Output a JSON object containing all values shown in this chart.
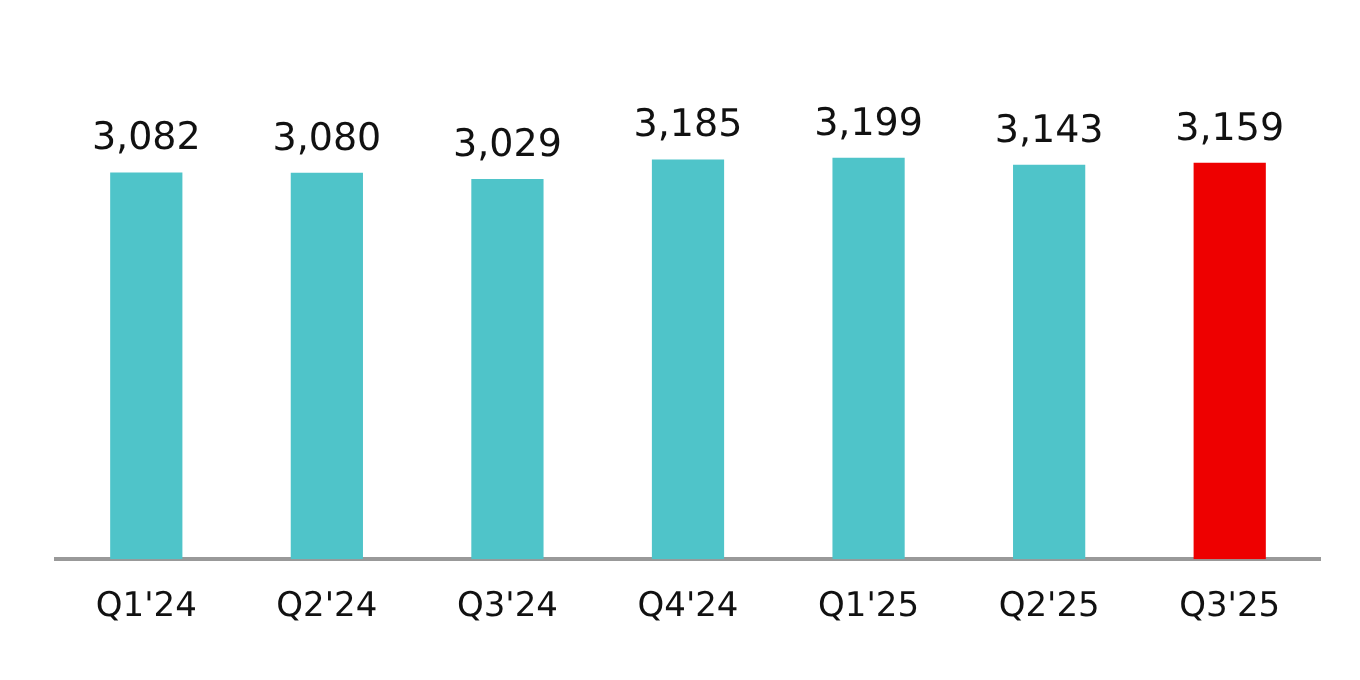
{
  "chart_data": {
    "type": "bar",
    "categories": [
      "Q1'24",
      "Q2'24",
      "Q3'24",
      "Q4'24",
      "Q1'25",
      "Q2'25",
      "Q3'25"
    ],
    "values": [
      3082,
      3080,
      3029,
      3185,
      3199,
      3143,
      3159
    ],
    "colors": [
      "#4fc4c9",
      "#4fc4c9",
      "#4fc4c9",
      "#4fc4c9",
      "#4fc4c9",
      "#4fc4c9",
      "#ee0000"
    ],
    "value_labels": [
      "3,082",
      "3,080",
      "3,029",
      "3,185",
      "3,199",
      "3,143",
      "3,159"
    ],
    "relative": false,
    "grid": false,
    "legend": false
  }
}
